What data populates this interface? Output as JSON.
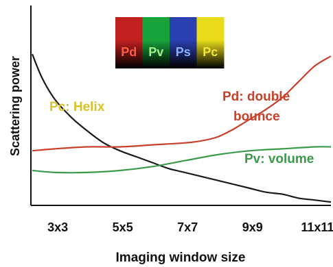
{
  "chart_data": {
    "type": "line",
    "title": "",
    "xlabel": "Imaging window size",
    "ylabel": "Scattering power",
    "categories": [
      "3x3",
      "5x5",
      "7x7",
      "9x9",
      "11x11"
    ],
    "x_range": [
      2.3,
      11.5
    ],
    "ylim": [
      0,
      1
    ],
    "grid": false,
    "series": [
      {
        "name": "Pc: Helix",
        "color": "#1a1a1a",
        "x": [
          2.3,
          2.6,
          3.0,
          3.5,
          4.0,
          4.5,
          5.0,
          5.5,
          6.0,
          6.5,
          7.0,
          7.5,
          8.0,
          8.5,
          9.0,
          9.5,
          10.0,
          10.5,
          11.0,
          11.5
        ],
        "y": [
          0.76,
          0.64,
          0.53,
          0.44,
          0.37,
          0.31,
          0.27,
          0.24,
          0.21,
          0.18,
          0.16,
          0.14,
          0.12,
          0.1,
          0.08,
          0.06,
          0.05,
          0.03,
          0.02,
          0.01
        ]
      },
      {
        "name": "Pd: double bounce",
        "color": "#c8402a",
        "x": [
          2.3,
          3.0,
          4.0,
          5.0,
          6.0,
          7.0,
          7.5,
          8.0,
          8.5,
          9.0,
          9.5,
          10.0,
          10.5,
          11.0,
          11.5
        ],
        "y": [
          0.27,
          0.28,
          0.29,
          0.29,
          0.3,
          0.31,
          0.32,
          0.34,
          0.38,
          0.43,
          0.48,
          0.54,
          0.62,
          0.7,
          0.75
        ]
      },
      {
        "name": "Pv: volume",
        "color": "#3a9a4a",
        "x": [
          2.3,
          3.0,
          4.0,
          5.0,
          6.0,
          7.0,
          8.0,
          9.0,
          10.0,
          11.0,
          11.5
        ],
        "y": [
          0.17,
          0.16,
          0.16,
          0.17,
          0.19,
          0.22,
          0.25,
          0.27,
          0.28,
          0.29,
          0.29
        ]
      }
    ],
    "annotations": {
      "pc": "Pc: Helix",
      "pd_line1": "Pd: double",
      "pd_line2": "bounce",
      "pv": "Pv: volume"
    },
    "legend_placement": "top-center",
    "legend": [
      {
        "label": "Pd",
        "bg": "#c0211e",
        "text": "#ff5a4a"
      },
      {
        "label": "Pv",
        "bg": "#17a33a",
        "text": "#9ef08a"
      },
      {
        "label": "Ps",
        "bg": "#2a3fb0",
        "text": "#8ab0ff"
      },
      {
        "label": "Pc",
        "bg": "#e8dc1a",
        "text": "#f2e63a"
      }
    ]
  }
}
